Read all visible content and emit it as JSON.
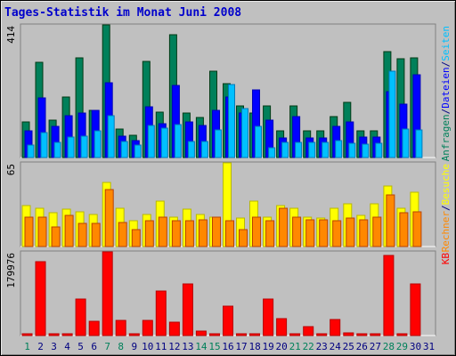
{
  "chart_data": {
    "type": "bar",
    "title": "Tages-Statistik im Monat Juni 2008",
    "colors": {
      "background": "#c0c0c0",
      "title": "#0000cc",
      "anfragen": "#00805a",
      "dateien": "#0000ff",
      "seiten": "#00c0ff",
      "besuche": "#ffff00",
      "rechner": "#ff8800",
      "kb": "#ff0000",
      "weekend_day": "#00805a",
      "weekday": "#000080"
    },
    "categories": [
      "1",
      "2",
      "3",
      "4",
      "5",
      "6",
      "7",
      "8",
      "9",
      "10",
      "11",
      "12",
      "13",
      "14",
      "15",
      "16",
      "17",
      "18",
      "19",
      "20",
      "21",
      "22",
      "23",
      "24",
      "25",
      "26",
      "27",
      "28",
      "29",
      "30",
      "31"
    ],
    "weekend_days": [
      "1",
      "7",
      "8",
      "14",
      "15",
      "21",
      "22",
      "28",
      "29"
    ],
    "panels": [
      {
        "id": "top",
        "axis_max_label": "414",
        "ylim": [
          0,
          414
        ],
        "legend": [
          {
            "text": "Anfragen",
            "color": "#00805a"
          },
          {
            "text": "/",
            "color": "#000080"
          },
          {
            "text": "Dateien",
            "color": "#0000ff"
          },
          {
            "text": "/",
            "color": "#000080"
          },
          {
            "text": "Seiten",
            "color": "#00c0ff"
          }
        ],
        "series": [
          {
            "name": "Anfragen",
            "color": "#00805a",
            "values": [
              110,
              296,
              118,
              190,
              312,
              148,
              414,
              90,
              70,
              300,
              143,
              383,
              138,
              126,
              270,
              232,
              162,
              140,
              162,
              84,
              162,
              84,
              84,
              128,
              172,
              84,
              84,
              330,
              308,
              312,
              0
            ]
          },
          {
            "name": "Dateien",
            "color": "#0000ff",
            "values": [
              83,
              186,
              98,
              131,
              138,
              148,
              233,
              68,
              52,
              157,
              105,
              225,
              110,
              99,
              148,
              190,
              140,
              211,
              118,
              62,
              128,
              62,
              62,
              97,
              112,
              63,
              63,
              206,
              168,
              258,
              0
            ]
          },
          {
            "name": "Seiten",
            "color": "#00c0ff",
            "values": [
              38,
              77,
              48,
              65,
              67,
              82,
              130,
              50,
              38,
              100,
              92,
              102,
              51,
              51,
              87,
              228,
              152,
              97,
              30,
              48,
              47,
              46,
              47,
              52,
              45,
              42,
              44,
              270,
              89,
              85,
              0
            ]
          }
        ]
      },
      {
        "id": "middle",
        "axis_max_label": "65",
        "ylim": [
          0,
          65
        ],
        "legend": [
          {
            "text": "Rechner",
            "color": "#ff8800"
          },
          {
            "text": "/",
            "color": "#000080"
          },
          {
            "text": "Besuche",
            "color": "#ffff00"
          }
        ],
        "series": [
          {
            "name": "Besuche",
            "color": "#ffff00",
            "values": [
              32,
              30,
              26,
              29,
              27,
              25,
              50,
              30,
              20,
              25,
              35,
              23,
              29,
              25,
              23,
              65,
              22,
              35,
              23,
              32,
              30,
              23,
              22,
              30,
              33,
              24,
              33,
              47,
              30,
              42,
              0
            ]
          },
          {
            "name": "Rechner",
            "color": "#ff8800",
            "values": [
              23,
              23,
              15,
              24,
              18,
              18,
              44,
              19,
              13,
              20,
              23,
              20,
              20,
              21,
              23,
              20,
              13,
              23,
              20,
              30,
              23,
              21,
              21,
              20,
              22,
              21,
              23,
              40,
              26,
              27,
              0
            ]
          }
        ]
      },
      {
        "id": "bottom",
        "axis_max_label": "179976",
        "ylim": [
          0,
          179976
        ],
        "legend": [
          {
            "text": "KB",
            "color": "#ff0000"
          }
        ],
        "series": [
          {
            "name": "KB",
            "color": "#ff0000",
            "values": [
              2000,
              158000,
              2000,
              2000,
              78000,
              30000,
              179976,
              32000,
              2000,
              32000,
              96000,
              28000,
              112000,
              9000,
              2000,
              64000,
              2000,
              4000,
              78000,
              36000,
              4000,
              20000,
              2000,
              34000,
              5000,
              4000,
              2000,
              172000,
              4000,
              112000,
              0
            ]
          }
        ]
      }
    ]
  }
}
